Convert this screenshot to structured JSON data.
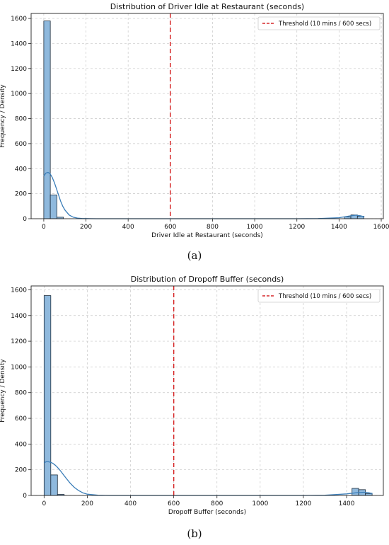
{
  "panels": [
    {
      "caption": "(a)"
    },
    {
      "caption": "(b)"
    }
  ],
  "chart_data": [
    {
      "type": "bar",
      "title": "Distribution of Driver Idle at Restaurant (seconds)",
      "xlabel": "Driver Idle at Restaurant (seconds)",
      "ylabel": "Frequency / Density",
      "xlim": [
        -60,
        1610
      ],
      "ylim": [
        0,
        1640
      ],
      "xticks": [
        0,
        200,
        400,
        600,
        800,
        1000,
        1200,
        1400,
        1600
      ],
      "yticks": [
        0,
        200,
        400,
        600,
        800,
        1000,
        1200,
        1400,
        1600
      ],
      "grid": true,
      "legend_position": "top-right",
      "bar_color": "#8fb9dd",
      "bins": [
        {
          "x0": 0,
          "x1": 31,
          "value": 1580
        },
        {
          "x0": 31,
          "x1": 62,
          "value": 190
        },
        {
          "x0": 62,
          "x1": 93,
          "value": 12
        },
        {
          "x0": 1425,
          "x1": 1456,
          "value": 15
        },
        {
          "x0": 1456,
          "x1": 1487,
          "value": 30
        },
        {
          "x0": 1487,
          "x1": 1518,
          "value": 20
        }
      ],
      "kde": {
        "color": "#3a7db8",
        "x": [
          0,
          10,
          20,
          30,
          40,
          50,
          60,
          70,
          80,
          90,
          100,
          120,
          140,
          160,
          180,
          200,
          250,
          300,
          400,
          600,
          800,
          1000,
          1200,
          1300,
          1400,
          1450,
          1480,
          1500,
          1520
        ],
        "y": [
          340,
          365,
          370,
          360,
          330,
          290,
          240,
          190,
          140,
          100,
          70,
          30,
          12,
          5,
          2,
          1,
          0,
          0,
          0,
          0,
          0,
          0,
          0,
          1,
          8,
          22,
          28,
          24,
          15
        ]
      },
      "threshold": {
        "x": 600,
        "label": "Threshold (10 mins / 600 secs)",
        "color": "#d62728"
      }
    },
    {
      "type": "bar",
      "title": "Distribution of Dropoff Buffer (seconds)",
      "xlabel": "Dropoff Buffer (seconds)",
      "ylabel": "Frequency / Density",
      "xlim": [
        -60,
        1570
      ],
      "ylim": [
        0,
        1630
      ],
      "xticks": [
        0,
        200,
        400,
        600,
        800,
        1000,
        1200,
        1400
      ],
      "yticks": [
        0,
        200,
        400,
        600,
        800,
        1000,
        1200,
        1400,
        1600
      ],
      "grid": true,
      "legend_position": "top-right",
      "bar_color": "#8fb9dd",
      "bins": [
        {
          "x0": 0,
          "x1": 31,
          "value": 1555
        },
        {
          "x0": 31,
          "x1": 62,
          "value": 160
        },
        {
          "x0": 62,
          "x1": 93,
          "value": 8
        },
        {
          "x0": 1425,
          "x1": 1456,
          "value": 55
        },
        {
          "x0": 1456,
          "x1": 1487,
          "value": 45
        },
        {
          "x0": 1487,
          "x1": 1518,
          "value": 15
        }
      ],
      "kde": {
        "color": "#3a7db8",
        "x": [
          0,
          10,
          20,
          30,
          40,
          50,
          60,
          70,
          80,
          90,
          100,
          120,
          140,
          160,
          180,
          200,
          250,
          300,
          400,
          600,
          800,
          1000,
          1200,
          1300,
          1400,
          1450,
          1480,
          1500,
          1520
        ],
        "y": [
          255,
          262,
          262,
          258,
          250,
          238,
          222,
          203,
          182,
          160,
          138,
          97,
          63,
          38,
          20,
          10,
          2,
          0,
          0,
          0,
          0,
          0,
          0,
          2,
          12,
          22,
          25,
          22,
          15
        ]
      },
      "threshold": {
        "x": 600,
        "label": "Threshold (10 mins / 600 secs)",
        "color": "#d62728"
      }
    }
  ]
}
